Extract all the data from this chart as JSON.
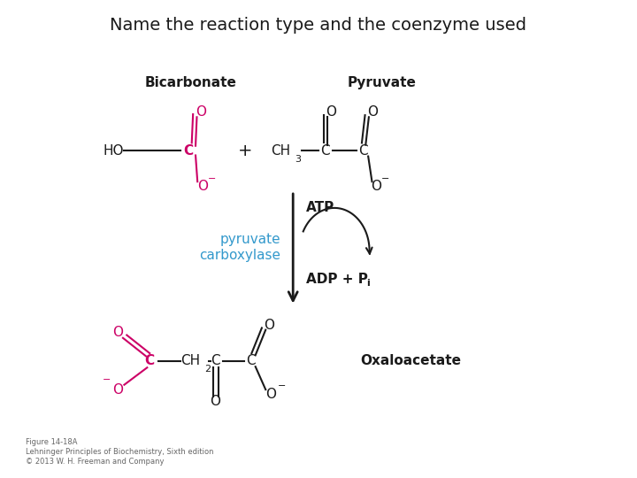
{
  "title": "Name the reaction type and the coenzyme used",
  "title_fontsize": 14,
  "background_color": "#ffffff",
  "figsize": [
    7.2,
    5.4
  ],
  "dpi": 100,
  "pink": "#cc0066",
  "blue": "#3399cc",
  "black": "#1a1a1a",
  "caption1": "Figure 14-18A",
  "caption2": "Lehninger Principles of Biochemistry, Sixth edition",
  "caption3": "© 2013 W. H. Freeman and Company"
}
